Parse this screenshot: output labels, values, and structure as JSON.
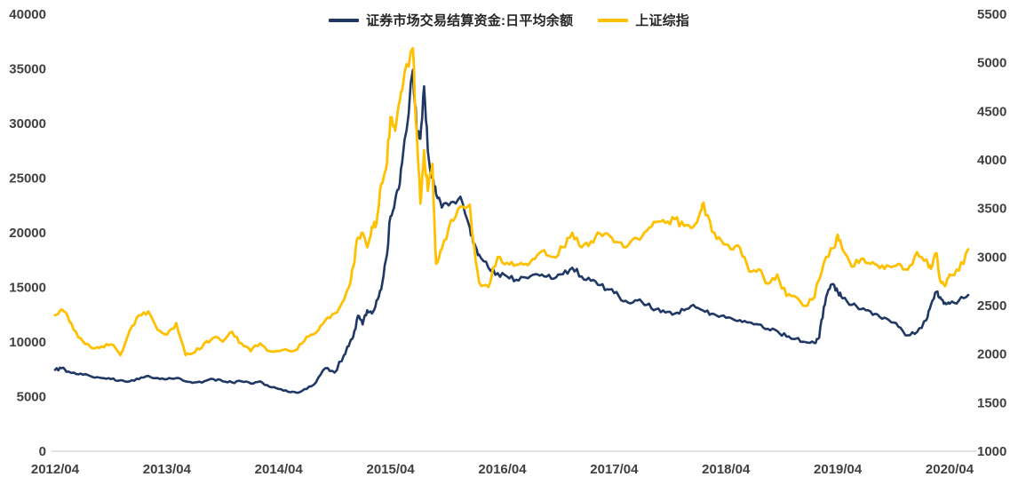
{
  "chart_data": {
    "type": "line",
    "title": "",
    "legend_position": "top-center",
    "grid": false,
    "axis_line_color": "#d9d9d9",
    "tick_label_color": "#404040",
    "legend": [
      {
        "name": "证券市场交易结算资金:日平均余额",
        "color": "#1F3864",
        "axis": "left"
      },
      {
        "name": "上证综指",
        "color": "#FFC000",
        "axis": "right"
      }
    ],
    "left_axis": {
      "min": 0,
      "max": 40000,
      "ticks": [
        0,
        5000,
        10000,
        15000,
        20000,
        25000,
        30000,
        35000,
        40000
      ]
    },
    "right_axis": {
      "min": 1000,
      "max": 5500,
      "ticks": [
        1000,
        1500,
        2000,
        2500,
        3000,
        3500,
        4000,
        4500,
        5000,
        5500
      ]
    },
    "x_axis": {
      "t_max": 98,
      "tick_t": [
        0,
        12,
        24,
        36,
        48,
        60,
        72,
        84,
        96
      ],
      "tick_labels": [
        "2012/04",
        "2013/04",
        "2014/04",
        "2015/04",
        "2016/04",
        "2017/04",
        "2018/04",
        "2019/04",
        "2020/04"
      ]
    },
    "series": [
      {
        "name": "证券市场交易结算资金:日平均余额",
        "color": "#1F3864",
        "axis": "left",
        "stroke_width": 2.6,
        "points": [
          [
            0,
            7450
          ],
          [
            0.7,
            7600
          ],
          [
            1.4,
            7300
          ],
          [
            2,
            7200
          ],
          [
            3,
            7000
          ],
          [
            4,
            6800
          ],
          [
            5,
            6700
          ],
          [
            6,
            6600
          ],
          [
            7,
            6500
          ],
          [
            8,
            6400
          ],
          [
            9,
            6600
          ],
          [
            10,
            6900
          ],
          [
            11,
            6700
          ],
          [
            12,
            6600
          ],
          [
            13,
            6700
          ],
          [
            14,
            6400
          ],
          [
            15,
            6300
          ],
          [
            16,
            6400
          ],
          [
            17,
            6600
          ],
          [
            18,
            6400
          ],
          [
            19,
            6300
          ],
          [
            20,
            6400
          ],
          [
            21,
            6200
          ],
          [
            22,
            6400
          ],
          [
            23,
            5900
          ],
          [
            24,
            5700
          ],
          [
            25,
            5450
          ],
          [
            26,
            5350
          ],
          [
            27,
            5700
          ],
          [
            28,
            6300
          ],
          [
            29,
            7600
          ],
          [
            30,
            7200
          ],
          [
            31,
            8800
          ],
          [
            31.5,
            9600
          ],
          [
            32,
            10500
          ],
          [
            32.5,
            12400
          ],
          [
            33,
            11600
          ],
          [
            33.5,
            12900
          ],
          [
            34,
            12600
          ],
          [
            34.5,
            13800
          ],
          [
            35,
            14800
          ],
          [
            35.5,
            17500
          ],
          [
            36,
            21500
          ],
          [
            36.5,
            23000
          ],
          [
            37,
            24500
          ],
          [
            37.5,
            28500
          ],
          [
            38.4,
            34900
          ],
          [
            38.8,
            29500
          ],
          [
            39.2,
            28600
          ],
          [
            39.6,
            33400
          ],
          [
            40,
            27500
          ],
          [
            40.5,
            25000
          ],
          [
            40.9,
            23500
          ],
          [
            41.5,
            22300
          ],
          [
            42.5,
            22800
          ],
          [
            43.5,
            23300
          ],
          [
            44.5,
            20500
          ],
          [
            45,
            19000
          ],
          [
            45.5,
            18000
          ],
          [
            46.5,
            16800
          ],
          [
            47.5,
            16300
          ],
          [
            48.5,
            16000
          ],
          [
            49.5,
            15700
          ],
          [
            50.5,
            15900
          ],
          [
            51.5,
            16200
          ],
          [
            52.5,
            16000
          ],
          [
            53.5,
            15800
          ],
          [
            54.5,
            16200
          ],
          [
            55.5,
            16800
          ],
          [
            56.5,
            16000
          ],
          [
            57.5,
            15600
          ],
          [
            58.5,
            15200
          ],
          [
            59.5,
            14800
          ],
          [
            60.5,
            14200
          ],
          [
            61.5,
            13600
          ],
          [
            62.5,
            13800
          ],
          [
            63.5,
            13400
          ],
          [
            64.5,
            13000
          ],
          [
            65.5,
            12700
          ],
          [
            66.5,
            12600
          ],
          [
            67.5,
            12900
          ],
          [
            68.5,
            13400
          ],
          [
            69.5,
            12900
          ],
          [
            70.5,
            12600
          ],
          [
            71.5,
            12400
          ],
          [
            72.5,
            12200
          ],
          [
            73.5,
            12000
          ],
          [
            74.5,
            11800
          ],
          [
            75.5,
            11600
          ],
          [
            76.5,
            11200
          ],
          [
            77.5,
            11000
          ],
          [
            78.5,
            10500
          ],
          [
            79.5,
            10300
          ],
          [
            80.5,
            10000
          ],
          [
            81.5,
            9900
          ],
          [
            82,
            10400
          ],
          [
            82.5,
            13200
          ],
          [
            83,
            14800
          ],
          [
            83.5,
            15300
          ],
          [
            84,
            14600
          ],
          [
            84.5,
            14000
          ],
          [
            85.5,
            13400
          ],
          [
            86.5,
            13000
          ],
          [
            87.5,
            12800
          ],
          [
            88.5,
            12300
          ],
          [
            89.5,
            12000
          ],
          [
            90.5,
            11400
          ],
          [
            91.5,
            10600
          ],
          [
            92.5,
            10900
          ],
          [
            93.5,
            12000
          ],
          [
            94,
            13400
          ],
          [
            94.6,
            14600
          ],
          [
            95,
            14100
          ],
          [
            95.5,
            13600
          ],
          [
            96,
            13500
          ],
          [
            97,
            13800
          ],
          [
            98,
            14300
          ]
        ]
      },
      {
        "name": "上证综指",
        "color": "#FFC000",
        "axis": "right",
        "stroke_width": 2.8,
        "points": [
          [
            0,
            2400
          ],
          [
            0.7,
            2460
          ],
          [
            1.4,
            2380
          ],
          [
            2,
            2250
          ],
          [
            3,
            2130
          ],
          [
            4,
            2060
          ],
          [
            5,
            2080
          ],
          [
            6,
            2100
          ],
          [
            7,
            1990
          ],
          [
            8,
            2240
          ],
          [
            9,
            2400
          ],
          [
            10,
            2440
          ],
          [
            11,
            2250
          ],
          [
            12,
            2200
          ],
          [
            13,
            2320
          ],
          [
            14,
            1990
          ],
          [
            15,
            2020
          ],
          [
            16,
            2110
          ],
          [
            17,
            2170
          ],
          [
            18,
            2130
          ],
          [
            19,
            2230
          ],
          [
            20,
            2110
          ],
          [
            21,
            2030
          ],
          [
            22,
            2110
          ],
          [
            23,
            2030
          ],
          [
            24,
            2030
          ],
          [
            25,
            2040
          ],
          [
            26,
            2050
          ],
          [
            27,
            2180
          ],
          [
            28,
            2220
          ],
          [
            29,
            2350
          ],
          [
            30,
            2420
          ],
          [
            31,
            2560
          ],
          [
            31.5,
            2680
          ],
          [
            32,
            2900
          ],
          [
            32.5,
            3200
          ],
          [
            33,
            3250
          ],
          [
            33.5,
            3100
          ],
          [
            34,
            3310
          ],
          [
            34.5,
            3350
          ],
          [
            35,
            3750
          ],
          [
            35.5,
            3900
          ],
          [
            36,
            4440
          ],
          [
            36.5,
            4300
          ],
          [
            37,
            4610
          ],
          [
            37.5,
            4900
          ],
          [
            38.4,
            5150
          ],
          [
            38.8,
            4300
          ],
          [
            39.2,
            3550
          ],
          [
            39.6,
            4100
          ],
          [
            40,
            3680
          ],
          [
            40.5,
            3960
          ],
          [
            40.9,
            2930
          ],
          [
            41.5,
            3080
          ],
          [
            42.5,
            3380
          ],
          [
            43.5,
            3520
          ],
          [
            44.5,
            3540
          ],
          [
            45,
            3100
          ],
          [
            45.5,
            2740
          ],
          [
            46.5,
            2690
          ],
          [
            47.5,
            3000
          ],
          [
            48.5,
            2940
          ],
          [
            49.5,
            2920
          ],
          [
            50.5,
            2930
          ],
          [
            51.5,
            2980
          ],
          [
            52.5,
            3070
          ],
          [
            53.5,
            3000
          ],
          [
            54.5,
            3100
          ],
          [
            55.5,
            3250
          ],
          [
            56.5,
            3100
          ],
          [
            57.5,
            3160
          ],
          [
            58.5,
            3240
          ],
          [
            59.5,
            3220
          ],
          [
            60.5,
            3150
          ],
          [
            61.5,
            3120
          ],
          [
            62.5,
            3190
          ],
          [
            63.5,
            3270
          ],
          [
            64.5,
            3360
          ],
          [
            65.5,
            3350
          ],
          [
            66.5,
            3390
          ],
          [
            67.5,
            3320
          ],
          [
            68.5,
            3310
          ],
          [
            69.3,
            3480
          ],
          [
            69.6,
            3560
          ],
          [
            70.5,
            3260
          ],
          [
            71.5,
            3170
          ],
          [
            72.5,
            3080
          ],
          [
            73.5,
            3095
          ],
          [
            74.5,
            2850
          ],
          [
            75.5,
            2875
          ],
          [
            76.5,
            2725
          ],
          [
            77.5,
            2820
          ],
          [
            78.5,
            2600
          ],
          [
            79.5,
            2590
          ],
          [
            80.5,
            2495
          ],
          [
            81.5,
            2585
          ],
          [
            82.5,
            2940
          ],
          [
            83.5,
            3090
          ],
          [
            84,
            3230
          ],
          [
            84.5,
            3080
          ],
          [
            85.5,
            2900
          ],
          [
            86.5,
            2980
          ],
          [
            87.5,
            2930
          ],
          [
            88.5,
            2885
          ],
          [
            89.5,
            2905
          ],
          [
            90.5,
            2930
          ],
          [
            91.5,
            2870
          ],
          [
            92.5,
            3050
          ],
          [
            93.5,
            2975
          ],
          [
            94,
            2880
          ],
          [
            94.6,
            3040
          ],
          [
            95,
            2750
          ],
          [
            95.5,
            2700
          ],
          [
            96,
            2820
          ],
          [
            97,
            2860
          ],
          [
            98,
            3080
          ]
        ]
      }
    ]
  }
}
